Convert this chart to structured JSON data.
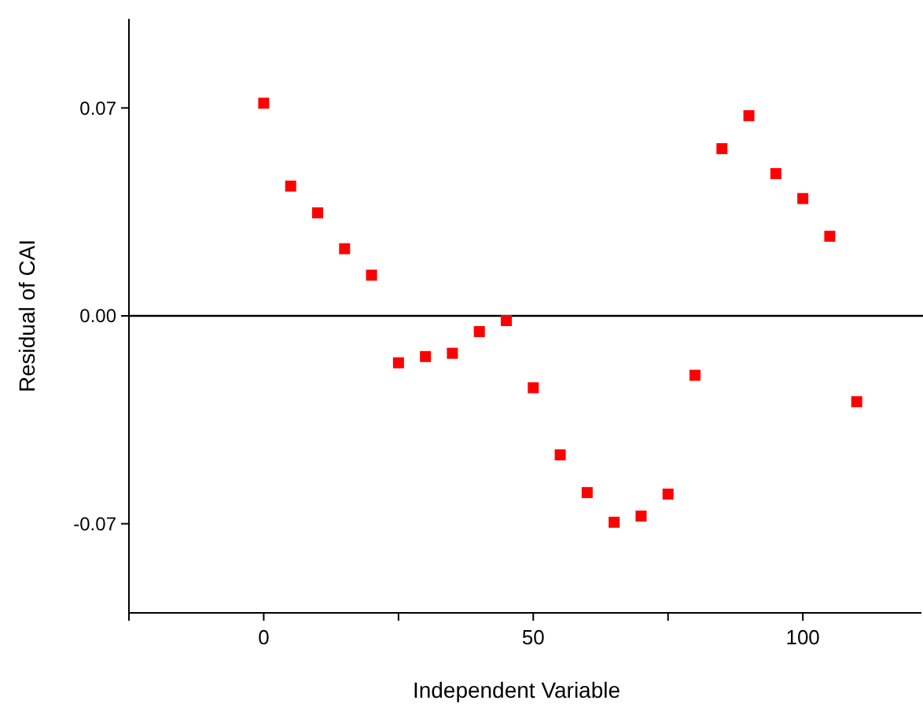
{
  "chart_data": {
    "type": "scatter",
    "xlabel": "Independent Variable",
    "ylabel": "Residual of CAI",
    "x": [
      0,
      5,
      10,
      15,
      20,
      25,
      30,
      35,
      40,
      45,
      50,
      55,
      60,
      65,
      70,
      75,
      80,
      85,
      90,
      95,
      100,
      105,
      110
    ],
    "series": [
      {
        "color": "#ff0000",
        "values": [
          0.0716,
          0.0437,
          0.0347,
          0.0226,
          0.0137,
          -0.0158,
          -0.0137,
          -0.0126,
          -0.0053,
          -0.0016,
          -0.0242,
          -0.0468,
          -0.0595,
          -0.0695,
          -0.0674,
          -0.06,
          -0.02,
          0.0563,
          0.0674,
          0.0479,
          0.0395,
          0.0268,
          -0.0289
        ]
      }
    ],
    "xlim": [
      -25,
      122
    ],
    "ylim": [
      -0.1,
      0.1
    ],
    "xticks": [
      {
        "value": -25,
        "label": null
      },
      0,
      {
        "value": 25,
        "label": null
      },
      50,
      {
        "value": 75,
        "label": null
      },
      100
    ],
    "yticks": [
      {
        "value": 0.07,
        "label": "0.07"
      },
      {
        "value": 0,
        "label": "0.00"
      },
      {
        "value": -0.07,
        "label": "-0.07"
      }
    ],
    "ref_lines": [
      {
        "axis": "y",
        "value": 0,
        "color": "#000000"
      }
    ],
    "marker": "square",
    "grid": false
  }
}
